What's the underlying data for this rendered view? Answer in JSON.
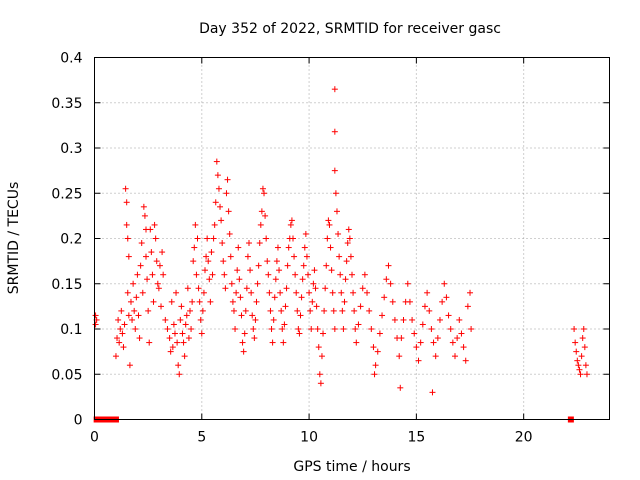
{
  "chart_data": {
    "type": "scatter",
    "title": "Day 352 of 2022, SRMTID for receiver gasc",
    "xlabel": "GPS time / hours",
    "ylabel": "SRMTID / TECUs",
    "xlim": [
      0,
      24
    ],
    "ylim": [
      0,
      0.4
    ],
    "xticks": [
      0,
      5,
      10,
      15,
      20
    ],
    "xtick_labels": [
      "0",
      "5",
      "10",
      "15",
      "20"
    ],
    "yticks": [
      0,
      0.05,
      0.1,
      0.15,
      0.2,
      0.25,
      0.3,
      0.35,
      0.4
    ],
    "ytick_labels": [
      "0",
      "0.05",
      "0.1",
      "0.15",
      "0.2",
      "0.25",
      "0.3",
      "0.35",
      "0.4"
    ],
    "grid": true,
    "marker": "+",
    "color": "#ff0000",
    "series": [
      {
        "name": "SRMTID",
        "points": [
          [
            0.05,
            0.115
          ],
          [
            0.05,
            0.105
          ],
          [
            0.1,
            0.11
          ],
          [
            1.0,
            0.07
          ],
          [
            1.05,
            0.09
          ],
          [
            1.1,
            0.11
          ],
          [
            1.15,
            0.085
          ],
          [
            1.2,
            0.1
          ],
          [
            1.25,
            0.12
          ],
          [
            1.3,
            0.095
          ],
          [
            1.35,
            0.08
          ],
          [
            1.4,
            0.105
          ],
          [
            1.45,
            0.255
          ],
          [
            1.5,
            0.24
          ],
          [
            1.5,
            0.215
          ],
          [
            1.55,
            0.2
          ],
          [
            1.6,
            0.18
          ],
          [
            1.55,
            0.14
          ],
          [
            1.6,
            0.115
          ],
          [
            1.65,
            0.06
          ],
          [
            1.7,
            0.13
          ],
          [
            1.75,
            0.11
          ],
          [
            1.8,
            0.15
          ],
          [
            1.85,
            0.12
          ],
          [
            1.9,
            0.1
          ],
          [
            1.95,
            0.135
          ],
          [
            2.0,
            0.16
          ],
          [
            2.05,
            0.115
          ],
          [
            2.1,
            0.09
          ],
          [
            2.15,
            0.17
          ],
          [
            2.2,
            0.195
          ],
          [
            2.25,
            0.14
          ],
          [
            2.3,
            0.235
          ],
          [
            2.35,
            0.225
          ],
          [
            2.4,
            0.21
          ],
          [
            2.4,
            0.18
          ],
          [
            2.45,
            0.155
          ],
          [
            2.5,
            0.12
          ],
          [
            2.55,
            0.085
          ],
          [
            2.6,
            0.21
          ],
          [
            2.65,
            0.185
          ],
          [
            2.7,
            0.16
          ],
          [
            2.75,
            0.13
          ],
          [
            2.8,
            0.215
          ],
          [
            2.85,
            0.2
          ],
          [
            2.9,
            0.175
          ],
          [
            2.95,
            0.15
          ],
          [
            3.0,
            0.145
          ],
          [
            3.05,
            0.17
          ],
          [
            3.1,
            0.125
          ],
          [
            3.15,
            0.185
          ],
          [
            3.2,
            0.16
          ],
          [
            3.3,
            0.11
          ],
          [
            3.4,
            0.1
          ],
          [
            3.5,
            0.09
          ],
          [
            3.55,
            0.075
          ],
          [
            3.6,
            0.13
          ],
          [
            3.65,
            0.08
          ],
          [
            3.7,
            0.105
          ],
          [
            3.75,
            0.095
          ],
          [
            3.8,
            0.14
          ],
          [
            3.85,
            0.085
          ],
          [
            3.9,
            0.06
          ],
          [
            3.95,
            0.05
          ],
          [
            4.0,
            0.11
          ],
          [
            4.05,
            0.125
          ],
          [
            4.1,
            0.095
          ],
          [
            4.15,
            0.085
          ],
          [
            4.2,
            0.07
          ],
          [
            4.25,
            0.105
          ],
          [
            4.3,
            0.115
          ],
          [
            4.35,
            0.145
          ],
          [
            4.4,
            0.09
          ],
          [
            4.45,
            0.12
          ],
          [
            4.5,
            0.1
          ],
          [
            4.55,
            0.13
          ],
          [
            4.6,
            0.175
          ],
          [
            4.65,
            0.19
          ],
          [
            4.7,
            0.215
          ],
          [
            4.75,
            0.16
          ],
          [
            4.8,
            0.2
          ],
          [
            4.85,
            0.145
          ],
          [
            4.9,
            0.13
          ],
          [
            4.95,
            0.11
          ],
          [
            5.0,
            0.095
          ],
          [
            5.05,
            0.12
          ],
          [
            5.1,
            0.14
          ],
          [
            5.15,
            0.165
          ],
          [
            5.2,
            0.18
          ],
          [
            5.25,
            0.2
          ],
          [
            5.3,
            0.175
          ],
          [
            5.35,
            0.155
          ],
          [
            5.4,
            0.13
          ],
          [
            5.45,
            0.185
          ],
          [
            5.5,
            0.16
          ],
          [
            5.55,
            0.2
          ],
          [
            5.6,
            0.215
          ],
          [
            5.65,
            0.24
          ],
          [
            5.7,
            0.285
          ],
          [
            5.75,
            0.27
          ],
          [
            5.8,
            0.255
          ],
          [
            5.85,
            0.235
          ],
          [
            5.9,
            0.22
          ],
          [
            5.95,
            0.195
          ],
          [
            6.0,
            0.175
          ],
          [
            6.05,
            0.16
          ],
          [
            6.1,
            0.145
          ],
          [
            6.15,
            0.25
          ],
          [
            6.2,
            0.265
          ],
          [
            6.25,
            0.23
          ],
          [
            6.3,
            0.205
          ],
          [
            6.35,
            0.18
          ],
          [
            6.4,
            0.15
          ],
          [
            6.45,
            0.13
          ],
          [
            6.5,
            0.12
          ],
          [
            6.55,
            0.1
          ],
          [
            6.6,
            0.14
          ],
          [
            6.65,
            0.165
          ],
          [
            6.7,
            0.19
          ],
          [
            6.75,
            0.155
          ],
          [
            6.8,
            0.135
          ],
          [
            6.85,
            0.115
          ],
          [
            6.9,
            0.085
          ],
          [
            6.95,
            0.075
          ],
          [
            7.0,
            0.095
          ],
          [
            7.05,
            0.12
          ],
          [
            7.1,
            0.145
          ],
          [
            7.15,
            0.18
          ],
          [
            7.2,
            0.195
          ],
          [
            7.25,
            0.165
          ],
          [
            7.3,
            0.14
          ],
          [
            7.35,
            0.115
          ],
          [
            7.4,
            0.1
          ],
          [
            7.45,
            0.09
          ],
          [
            7.5,
            0.11
          ],
          [
            7.55,
            0.13
          ],
          [
            7.6,
            0.15
          ],
          [
            7.65,
            0.17
          ],
          [
            7.7,
            0.195
          ],
          [
            7.75,
            0.215
          ],
          [
            7.8,
            0.23
          ],
          [
            7.85,
            0.255
          ],
          [
            7.9,
            0.25
          ],
          [
            7.95,
            0.225
          ],
          [
            8.0,
            0.2
          ],
          [
            8.05,
            0.175
          ],
          [
            8.1,
            0.16
          ],
          [
            8.15,
            0.14
          ],
          [
            8.2,
            0.12
          ],
          [
            8.25,
            0.1
          ],
          [
            8.3,
            0.085
          ],
          [
            8.35,
            0.11
          ],
          [
            8.4,
            0.135
          ],
          [
            8.45,
            0.155
          ],
          [
            8.5,
            0.175
          ],
          [
            8.55,
            0.19
          ],
          [
            8.6,
            0.165
          ],
          [
            8.65,
            0.14
          ],
          [
            8.7,
            0.12
          ],
          [
            8.75,
            0.1
          ],
          [
            8.8,
            0.085
          ],
          [
            8.85,
            0.105
          ],
          [
            8.9,
            0.125
          ],
          [
            8.95,
            0.145
          ],
          [
            9.0,
            0.17
          ],
          [
            9.05,
            0.19
          ],
          [
            9.1,
            0.2
          ],
          [
            9.15,
            0.215
          ],
          [
            9.2,
            0.22
          ],
          [
            9.25,
            0.2
          ],
          [
            9.3,
            0.18
          ],
          [
            9.35,
            0.16
          ],
          [
            9.4,
            0.14
          ],
          [
            9.45,
            0.12
          ],
          [
            9.5,
            0.1
          ],
          [
            9.55,
            0.095
          ],
          [
            9.6,
            0.115
          ],
          [
            9.65,
            0.135
          ],
          [
            9.7,
            0.155
          ],
          [
            9.75,
            0.17
          ],
          [
            9.8,
            0.19
          ],
          [
            9.85,
            0.205
          ],
          [
            9.9,
            0.18
          ],
          [
            9.95,
            0.16
          ],
          [
            10.0,
            0.14
          ],
          [
            10.05,
            0.12
          ],
          [
            10.1,
            0.1
          ],
          [
            10.15,
            0.13
          ],
          [
            10.2,
            0.15
          ],
          [
            10.25,
            0.165
          ],
          [
            10.3,
            0.145
          ],
          [
            10.35,
            0.125
          ],
          [
            10.4,
            0.1
          ],
          [
            10.45,
            0.08
          ],
          [
            10.5,
            0.05
          ],
          [
            10.55,
            0.04
          ],
          [
            10.6,
            0.07
          ],
          [
            10.65,
            0.095
          ],
          [
            10.7,
            0.12
          ],
          [
            10.75,
            0.145
          ],
          [
            10.8,
            0.17
          ],
          [
            10.85,
            0.2
          ],
          [
            10.9,
            0.22
          ],
          [
            10.95,
            0.215
          ],
          [
            11.0,
            0.19
          ],
          [
            11.05,
            0.165
          ],
          [
            11.1,
            0.14
          ],
          [
            11.15,
            0.12
          ],
          [
            11.2,
            0.1
          ],
          [
            11.2,
            0.365
          ],
          [
            11.2,
            0.318
          ],
          [
            11.2,
            0.275
          ],
          [
            11.25,
            0.25
          ],
          [
            11.3,
            0.23
          ],
          [
            11.35,
            0.205
          ],
          [
            11.4,
            0.18
          ],
          [
            11.45,
            0.16
          ],
          [
            11.5,
            0.14
          ],
          [
            11.55,
            0.12
          ],
          [
            11.6,
            0.1
          ],
          [
            11.65,
            0.13
          ],
          [
            11.7,
            0.155
          ],
          [
            11.75,
            0.175
          ],
          [
            11.8,
            0.195
          ],
          [
            11.85,
            0.21
          ],
          [
            11.9,
            0.2
          ],
          [
            11.95,
            0.18
          ],
          [
            12.0,
            0.16
          ],
          [
            12.05,
            0.14
          ],
          [
            12.1,
            0.12
          ],
          [
            12.15,
            0.1
          ],
          [
            12.2,
            0.085
          ],
          [
            12.3,
            0.105
          ],
          [
            12.4,
            0.125
          ],
          [
            12.5,
            0.145
          ],
          [
            12.6,
            0.16
          ],
          [
            12.7,
            0.14
          ],
          [
            12.8,
            0.12
          ],
          [
            12.9,
            0.1
          ],
          [
            13.0,
            0.08
          ],
          [
            13.1,
            0.06
          ],
          [
            13.2,
            0.075
          ],
          [
            13.3,
            0.095
          ],
          [
            13.4,
            0.115
          ],
          [
            13.5,
            0.135
          ],
          [
            13.6,
            0.155
          ],
          [
            13.7,
            0.17
          ],
          [
            13.8,
            0.15
          ],
          [
            13.9,
            0.13
          ],
          [
            14.0,
            0.11
          ],
          [
            14.1,
            0.09
          ],
          [
            14.2,
            0.07
          ],
          [
            14.3,
            0.09
          ],
          [
            14.4,
            0.11
          ],
          [
            14.5,
            0.13
          ],
          [
            14.6,
            0.15
          ],
          [
            14.7,
            0.13
          ],
          [
            14.8,
            0.11
          ],
          [
            14.9,
            0.095
          ],
          [
            15.0,
            0.08
          ],
          [
            15.1,
            0.065
          ],
          [
            15.2,
            0.085
          ],
          [
            15.3,
            0.105
          ],
          [
            15.4,
            0.125
          ],
          [
            15.5,
            0.14
          ],
          [
            15.6,
            0.12
          ],
          [
            15.7,
            0.1
          ],
          [
            15.8,
            0.085
          ],
          [
            15.9,
            0.07
          ],
          [
            16.0,
            0.09
          ],
          [
            16.1,
            0.11
          ],
          [
            16.2,
            0.13
          ],
          [
            16.3,
            0.15
          ],
          [
            16.4,
            0.135
          ],
          [
            16.5,
            0.115
          ],
          [
            16.6,
            0.1
          ],
          [
            16.7,
            0.085
          ],
          [
            16.8,
            0.07
          ],
          [
            16.9,
            0.09
          ],
          [
            17.0,
            0.11
          ],
          [
            17.1,
            0.095
          ],
          [
            17.2,
            0.08
          ],
          [
            17.3,
            0.065
          ],
          [
            17.4,
            0.125
          ],
          [
            17.5,
            0.14
          ],
          [
            17.55,
            0.1
          ],
          [
            14.25,
            0.035
          ],
          [
            15.75,
            0.03
          ],
          [
            13.05,
            0.05
          ],
          [
            22.35,
            0.1
          ],
          [
            22.4,
            0.085
          ],
          [
            22.45,
            0.075
          ],
          [
            22.5,
            0.065
          ],
          [
            22.55,
            0.06
          ],
          [
            22.6,
            0.055
          ],
          [
            22.65,
            0.05
          ],
          [
            22.7,
            0.07
          ],
          [
            22.75,
            0.09
          ],
          [
            22.8,
            0.1
          ],
          [
            22.85,
            0.08
          ],
          [
            22.9,
            0.06
          ],
          [
            22.95,
            0.05
          ]
        ]
      }
    ],
    "zero_points": [
      0.1,
      0.2,
      0.3,
      0.4,
      0.5,
      0.6,
      0.75,
      1.0,
      22.2
    ]
  }
}
